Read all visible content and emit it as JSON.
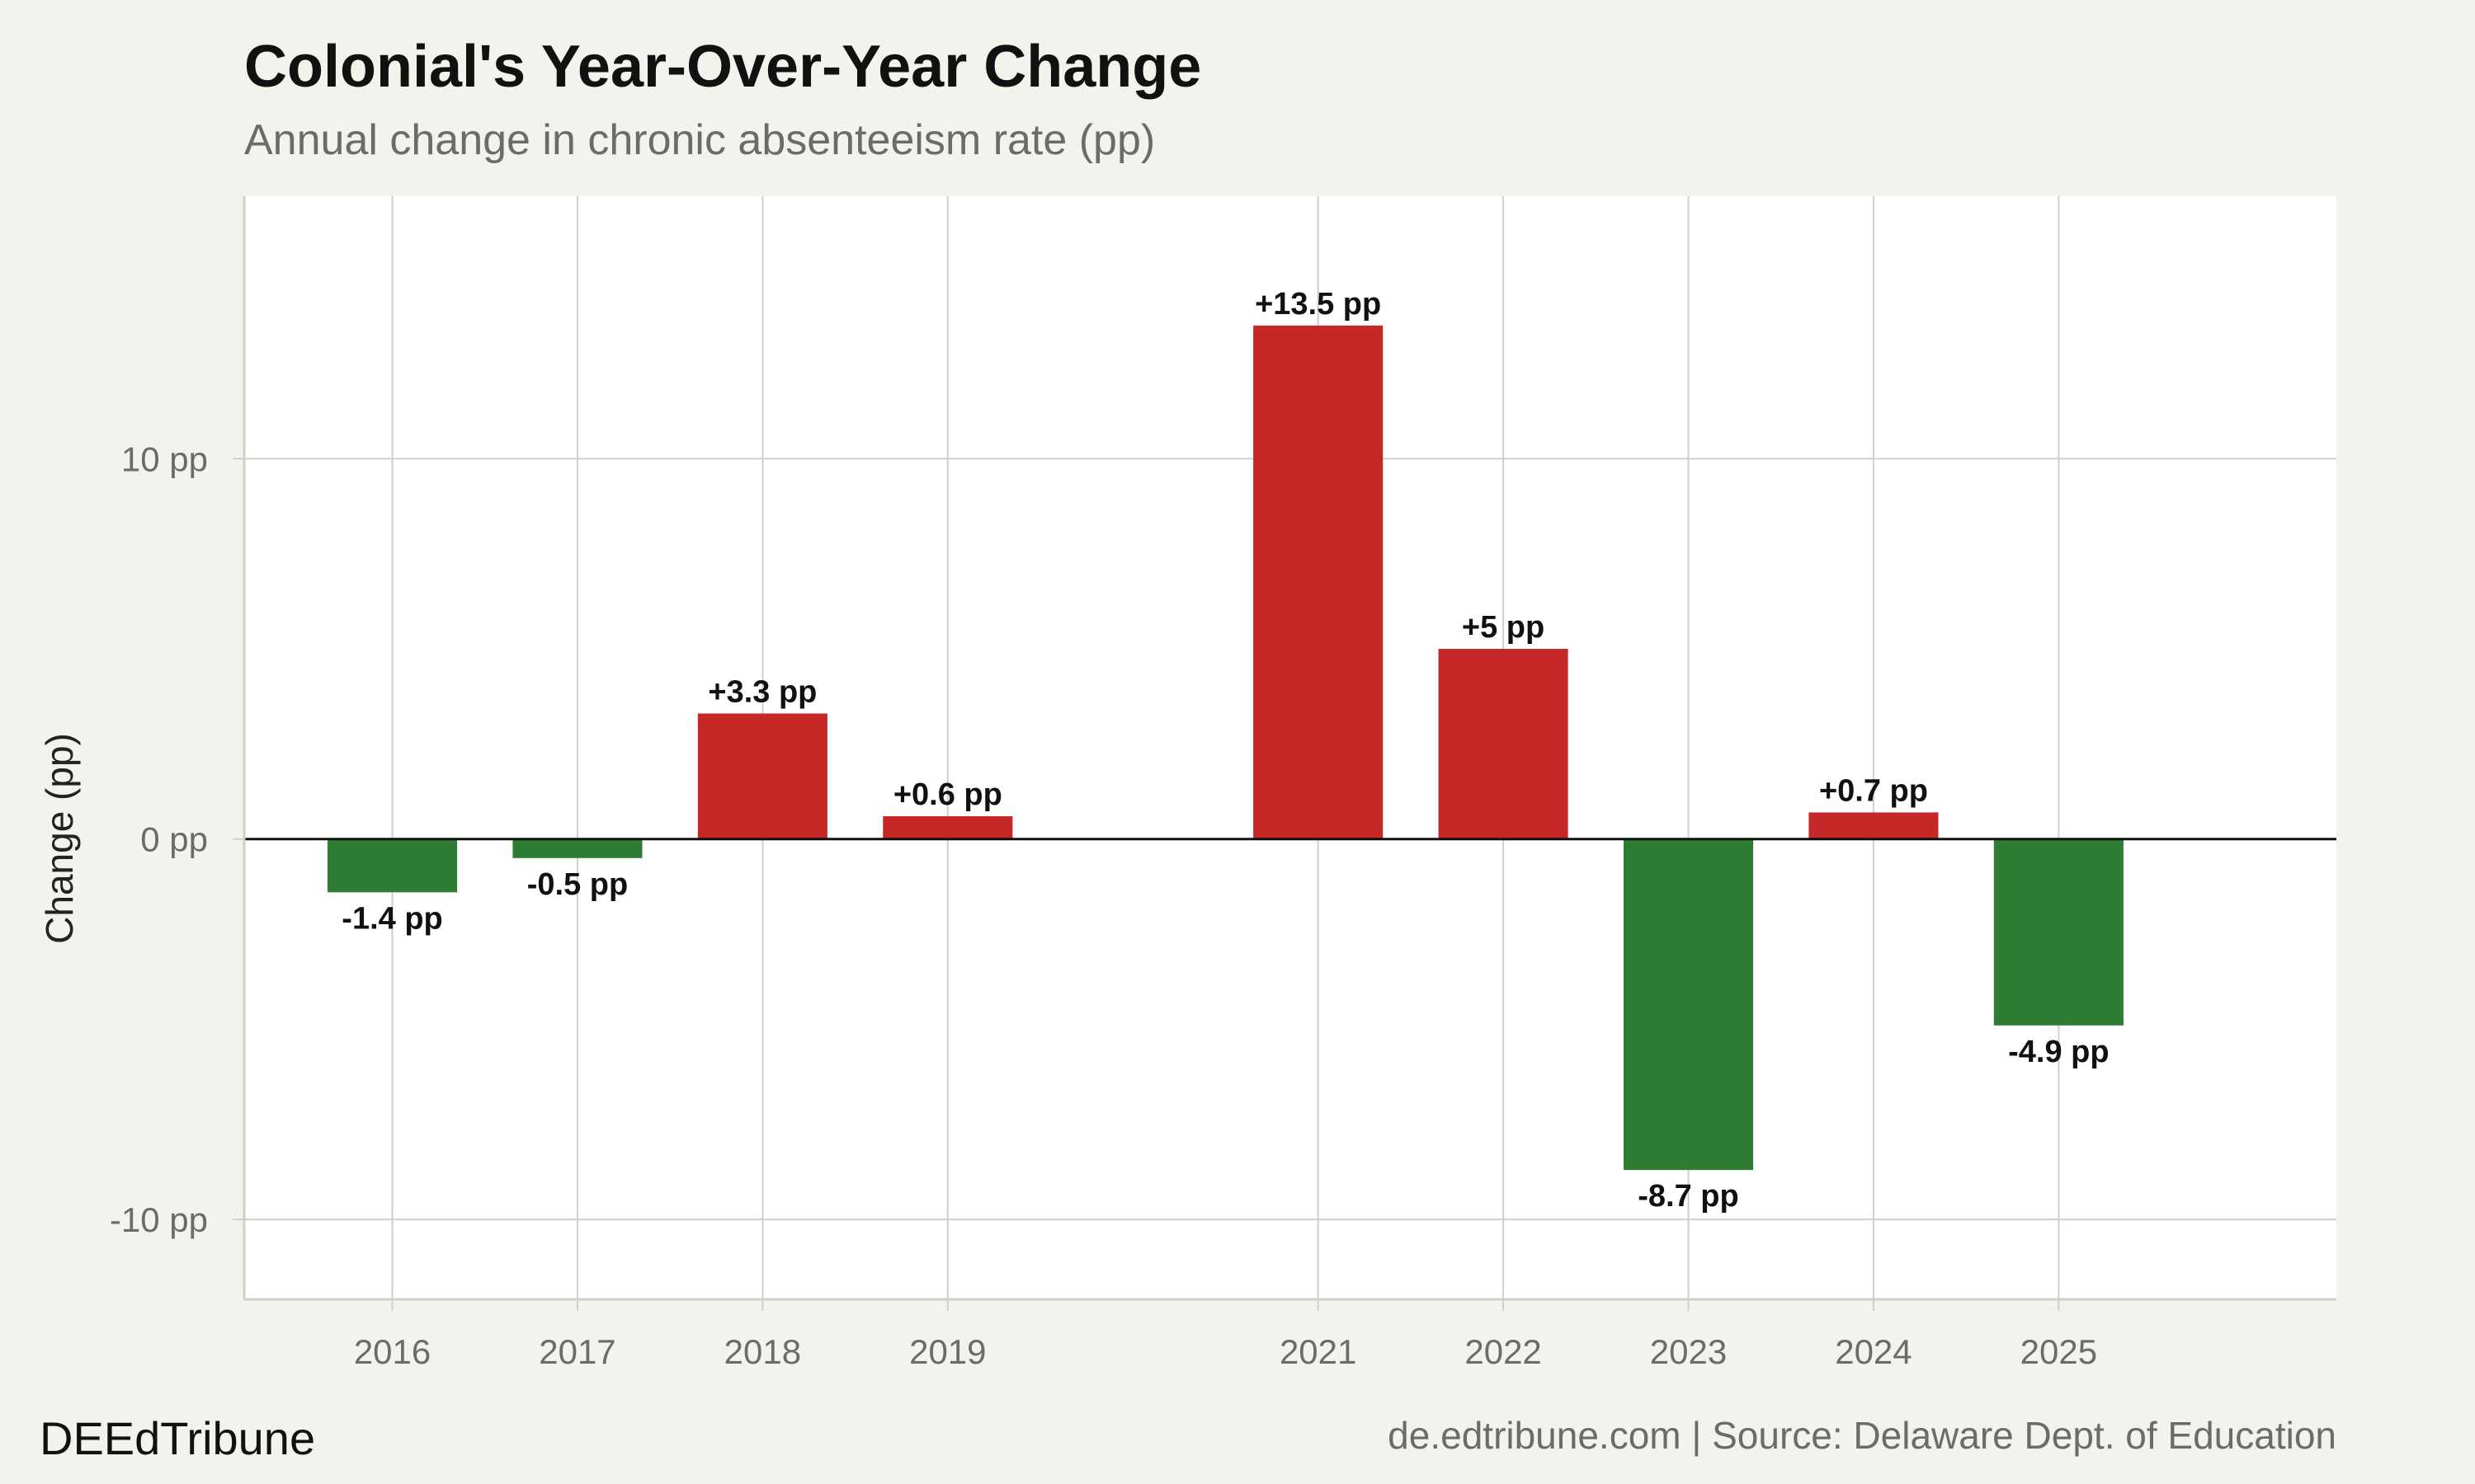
{
  "brand": "DEEdTribune",
  "source": "de.edtribune.com | Source: Delaware Dept. of Education",
  "colors": {
    "increase": "#c62828",
    "decrease": "#2e7d32",
    "panel": "#ffffff",
    "background": "#f4f2ed",
    "grid": "#d0cfc8"
  },
  "chart_data": {
    "type": "bar",
    "title": "Colonial's Year-Over-Year Change",
    "subtitle": "Annual change in chronic absenteeism rate (pp)",
    "ylabel": "Change (pp)",
    "xlabel": "",
    "x": [
      2016,
      2017,
      2018,
      2019,
      2021,
      2022,
      2023,
      2024,
      2025
    ],
    "values": [
      -1.4,
      -0.5,
      3.3,
      0.6,
      13.5,
      5,
      -8.7,
      0.7,
      -4.9
    ],
    "labels": [
      "-1.4 pp",
      "-0.5 pp",
      "+3.3 pp",
      "+0.6 pp",
      "+13.5 pp",
      "+5 pp",
      "-8.7 pp",
      "+0.7 pp",
      "-4.9 pp"
    ],
    "xlim": [
      2015.2,
      2026.5
    ],
    "ylim": [
      -12.1,
      16.9
    ],
    "yticks": [
      -10,
      0,
      10
    ],
    "ytick_labels": [
      "-10 pp",
      "0 pp",
      "10 pp"
    ],
    "bar_width_years": 0.7,
    "grid": true,
    "legend": "none"
  }
}
